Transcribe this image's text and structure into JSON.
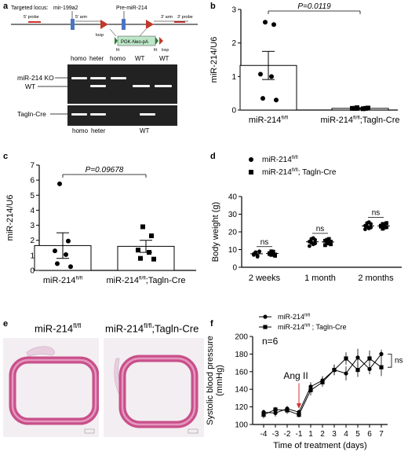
{
  "panels": {
    "a": {
      "letter": "a",
      "targeted_locus": "Targeted locus:",
      "mir199a2": "mir-199a2",
      "pre_mir214": "Pre-miR-214",
      "probe5": "5' probe",
      "arm5": "5' arm",
      "arm3": "3' arm",
      "probe3": "3' probe",
      "loxp1": "loxp",
      "loxp2": "loxp",
      "cassette": "PGK-Neo-pA",
      "frt1": "frt",
      "frt2": "frt",
      "lanes": [
        "homo",
        "heter",
        "homo",
        "WT",
        "WT"
      ],
      "lanes2": [
        "homo",
        "heter",
        "WT"
      ],
      "band_ko": "miR-214 KO",
      "band_wt": "WT",
      "band_cre": "Tagln-Cre"
    },
    "b": {
      "letter": "b",
      "pvalue": "P=0.0119"
    },
    "c": {
      "letter": "c",
      "pvalue": "P=0.09678"
    },
    "d": {
      "letter": "d",
      "ns": [
        "ns",
        "ns",
        "ns"
      ]
    },
    "e": {
      "letter": "e",
      "label_left": "miR-214",
      "label_left_sup": "fl/fl",
      "label_right": "miR-214",
      "label_right_sup": "fl/fl",
      "label_right_suffix": ";Tagln-Cre"
    },
    "f": {
      "letter": "f",
      "n_label": "n=6",
      "arrow_label": "Ang II",
      "ns": "ns"
    }
  },
  "chart_data": [
    {
      "id": "b",
      "type": "bar",
      "ylabel": "miR-214/U6",
      "ylim": [
        0,
        3
      ],
      "yticks": [
        "0",
        "1",
        "2",
        "3"
      ],
      "categories": [
        {
          "base": "miR-214",
          "sup": "fl/fl",
          "suffix": ""
        },
        {
          "base": "miR-214",
          "sup": "fl/fl",
          "suffix": ";Tagln-Cre"
        }
      ],
      "values": [
        1.33,
        0.05
      ],
      "errors": [
        0.42,
        0.02
      ],
      "points": [
        [
          2.62,
          2.55,
          1.07,
          1.0,
          0.35,
          0.3
        ],
        [
          0.07,
          0.05,
          0.05,
          0.04,
          0.05,
          0.06,
          0.05
        ]
      ]
    },
    {
      "id": "c",
      "type": "bar",
      "ylabel": "miR-214/U6",
      "ylim": [
        0,
        7
      ],
      "yticks": [
        "0",
        "1",
        "2",
        "3",
        "4",
        "5",
        "6",
        "7"
      ],
      "categories": [
        {
          "base": "miR-214",
          "sup": "fl/fl",
          "suffix": ""
        },
        {
          "base": "miR-214",
          "sup": "fl/fl",
          "suffix": ";Tagln-Cre"
        }
      ],
      "values": [
        1.65,
        1.6
      ],
      "errors": [
        0.85,
        0.4
      ],
      "points": [
        [
          5.75,
          1.95,
          1.3,
          1.05,
          0.45,
          0.25
        ],
        [
          2.9,
          2.3,
          1.35,
          1.2,
          0.8,
          0.75
        ]
      ]
    },
    {
      "id": "d",
      "type": "scatter",
      "ylabel": "Body weight (g)",
      "ylim": [
        0,
        40
      ],
      "yticks": [
        "0",
        "10",
        "20",
        "30",
        "40"
      ],
      "categories": [
        "2 weeks",
        "1 month",
        "2 months"
      ],
      "series": [
        {
          "name": "miR-214",
          "name_sup": "fl/fl",
          "name_suffix": "",
          "marker": "circle",
          "points": [
            [
              7.5,
              8.5,
              6.5,
              9.0,
              7.0,
              8.0,
              6.0,
              8.8
            ],
            [
              14.5,
              16.0,
              13.0,
              15.5,
              12.0,
              14.0,
              16.5,
              13.5
            ],
            [
              23.5,
              25.0,
              22.0,
              24.5,
              21.5,
              23.0,
              25.5,
              22.5
            ]
          ],
          "means": [
            7.6,
            14.4,
            23.4
          ]
        },
        {
          "name": "miR-214",
          "name_sup": "fl/fl",
          "name_suffix": "; Tagln-Cre",
          "marker": "square",
          "points": [
            [
              8.0,
              7.0,
              8.8,
              6.5,
              7.5,
              9.0,
              8.3,
              7.2
            ],
            [
              15.0,
              13.5,
              16.0,
              14.5,
              12.5,
              15.5,
              14.0,
              13.0
            ],
            [
              23.0,
              24.5,
              22.5,
              25.0,
              23.5,
              21.8,
              24.0,
              22.7
            ]
          ],
          "means": [
            7.8,
            14.3,
            23.4
          ]
        }
      ]
    },
    {
      "id": "f",
      "type": "line",
      "ylabel": "Systolic blood pressure\n(mmHg)",
      "xlabel": "Time of treatment (days)",
      "ylim": [
        100,
        200
      ],
      "yticks": [
        "100",
        "120",
        "140",
        "160",
        "180",
        "200"
      ],
      "x": [
        "-4",
        "-3",
        "-2",
        "-1",
        "1",
        "2",
        "3",
        "4",
        "5",
        "6",
        "7"
      ],
      "series": [
        {
          "name": "miR-214",
          "name_sup": "fl/fl",
          "name_suffix": "",
          "marker": "circle",
          "values": [
            114,
            113,
            118,
            114,
            143,
            150,
            162,
            158,
            176,
            163,
            180
          ],
          "errors": [
            3,
            4,
            3,
            3,
            5,
            5,
            6,
            8,
            10,
            6,
            5
          ]
        },
        {
          "name": "miR-214",
          "name_sup": "fl/fl",
          "name_suffix": " ; Tagln-Cre",
          "marker": "square",
          "values": [
            111,
            117,
            116,
            111,
            139,
            148,
            162,
            175,
            162,
            175,
            165
          ],
          "errors": [
            4,
            3,
            4,
            3,
            6,
            5,
            6,
            7,
            8,
            9,
            10
          ]
        }
      ]
    }
  ]
}
